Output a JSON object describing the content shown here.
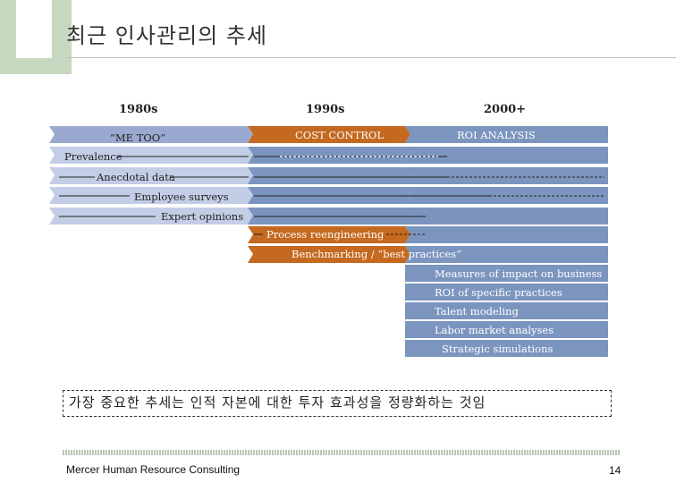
{
  "title": "최근 인사관리의 추세",
  "eras": [
    "1980s",
    "1990s",
    "2000+"
  ],
  "headers": {
    "h1980": "“ME TOO”",
    "h1990": "COST CONTROL",
    "h2000": "ROI ANALYSIS"
  },
  "rows": {
    "prevalence": "Prevalence",
    "anecdotal": "Anecdotal data",
    "surveys": "Employee surveys",
    "opinions": "Expert opinions",
    "reengineering": "Process reengineering",
    "benchmarking": "Benchmarking / “best practices”",
    "impact": "Measures of impact on business",
    "roi": "ROI of specific practices",
    "talent": "Talent modeling",
    "labor": "Labor market analyses",
    "simulations": "Strategic simulations"
  },
  "highlight": "가장 중요한 추세는 인적 자본에 대한 투자 효과성을 정량화하는 것임",
  "footer": "Mercer Human Resource Consulting",
  "page_number": "14",
  "colors": {
    "green_accent": "#c6d9c0",
    "blue_1980s": "#9aa9cf",
    "light_blue": "#c3cde6",
    "orange_1990s": "#c4691f",
    "steel_blue_2000s": "#7b95bf"
  }
}
